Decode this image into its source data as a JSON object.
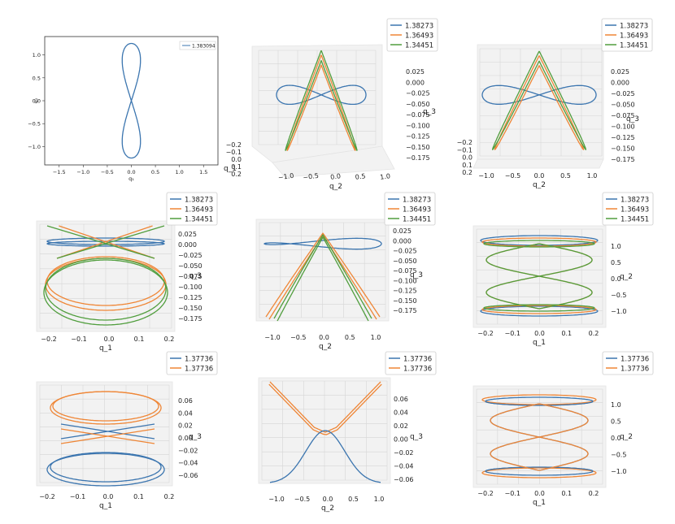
{
  "figure": {
    "colors": {
      "blue": "#3b75af",
      "orange": "#ef8636",
      "green": "#519e3e",
      "pane": "#f2f2f2",
      "grid": "#d6d6d6",
      "axis": "#333333"
    }
  },
  "chart_data": [
    {
      "id": "p1",
      "type": "line",
      "view": "2d",
      "legend_pos": "top-right",
      "series": [
        {
          "name": "1.383094",
          "color": "blue",
          "curve": "fig8v",
          "a": 0.2,
          "b": 1.25
        }
      ],
      "xlabel": "q₁",
      "ylabel": "q₂",
      "xticks": [
        "−1.5",
        "−1.0",
        "−0.5",
        "0.0",
        "0.5",
        "1.0",
        "1.5"
      ],
      "yticks": [
        "1.0",
        "0.5",
        "0.0",
        "−0.5",
        "−1.0"
      ],
      "xlim": [
        -1.8,
        1.8
      ],
      "ylim": [
        -1.4,
        1.4
      ]
    },
    {
      "id": "p2",
      "type": "line",
      "view": "3d-oblique",
      "legend_pos": "top-right",
      "series": [
        {
          "name": "1.38273",
          "color": "blue"
        },
        {
          "name": "1.36493",
          "color": "orange"
        },
        {
          "name": "1.34451",
          "color": "green"
        }
      ],
      "xlabel": "q_2",
      "ylabel": "q_1",
      "zlabel": "q_3",
      "xticks": [
        "−1.0",
        "−0.5",
        "0.0",
        "0.5",
        "1.0"
      ],
      "yticks": [
        "−0.2",
        "−0.1",
        "0.0",
        "0.1",
        "0.2"
      ],
      "zticks": [
        "0.025",
        "0.000",
        "−0.025",
        "−0.050",
        "−0.075",
        "−0.100",
        "−0.125",
        "−0.150",
        "−0.175"
      ]
    },
    {
      "id": "p3",
      "type": "line",
      "view": "3d-front",
      "legend_pos": "top-right",
      "series": [
        {
          "name": "1.38273",
          "color": "blue"
        },
        {
          "name": "1.36493",
          "color": "orange"
        },
        {
          "name": "1.34451",
          "color": "green"
        }
      ],
      "xlabel": "q_2",
      "ylabel": "q_1",
      "zlabel": "q_3",
      "xticks": [
        "−1.0",
        "−0.5",
        "0.0",
        "0.5",
        "1.0"
      ],
      "yticks": [
        "−0.2",
        "−0.1",
        "0.0",
        "0.1",
        "0.2"
      ],
      "zticks": [
        "0.025",
        "0.000",
        "−0.025",
        "−0.050",
        "−0.075",
        "−0.100",
        "−0.125",
        "−0.150",
        "−0.175"
      ]
    },
    {
      "id": "p4",
      "type": "line",
      "view": "3d-side-q1q3",
      "legend_pos": "top-right",
      "series": [
        {
          "name": "1.38273",
          "color": "blue"
        },
        {
          "name": "1.36493",
          "color": "orange"
        },
        {
          "name": "1.34451",
          "color": "green"
        }
      ],
      "xlabel": "q_1",
      "zlabel": "q_3",
      "xticks": [
        "−0.2",
        "−0.1",
        "0.0",
        "0.1",
        "0.2"
      ],
      "zticks": [
        "0.025",
        "0.000",
        "−0.025",
        "−0.050",
        "−0.075",
        "−0.100",
        "−0.125",
        "−0.150",
        "−0.175"
      ]
    },
    {
      "id": "p5",
      "type": "line",
      "view": "3d-side-q2q3",
      "legend_pos": "top-right",
      "series": [
        {
          "name": "1.38273",
          "color": "blue"
        },
        {
          "name": "1.36493",
          "color": "orange"
        },
        {
          "name": "1.34451",
          "color": "green"
        }
      ],
      "xlabel": "q_2",
      "zlabel": "q_3",
      "xticks": [
        "−1.0",
        "−0.5",
        "0.0",
        "0.5",
        "1.0"
      ],
      "zticks": [
        "0.025",
        "0.000",
        "−0.025",
        "−0.050",
        "−0.075",
        "−0.100",
        "−0.125",
        "−0.150",
        "−0.175"
      ]
    },
    {
      "id": "p6",
      "type": "line",
      "view": "3d-top-q1q2",
      "legend_pos": "top-right",
      "series": [
        {
          "name": "1.38273",
          "color": "blue"
        },
        {
          "name": "1.36493",
          "color": "orange"
        },
        {
          "name": "1.34451",
          "color": "green"
        }
      ],
      "xlabel": "q_1",
      "zlabel": "q_2",
      "xticks": [
        "−0.2",
        "−0.1",
        "0.0",
        "0.1",
        "0.2"
      ],
      "zticks": [
        "1.0",
        "0.5",
        "0.0",
        "−0.5",
        "−1.0"
      ]
    },
    {
      "id": "p7",
      "type": "line",
      "view": "3d-side-q1q3",
      "legend_pos": "top-right",
      "series": [
        {
          "name": "1.37736",
          "color": "blue"
        },
        {
          "name": "1.37736",
          "color": "orange"
        }
      ],
      "xlabel": "q_1",
      "zlabel": "q_3",
      "xticks": [
        "−0.2",
        "−0.1",
        "0.0",
        "0.1",
        "0.2"
      ],
      "zticks": [
        "0.06",
        "0.04",
        "0.02",
        "0.00",
        "−0.02",
        "−0.04",
        "−0.06"
      ]
    },
    {
      "id": "p8",
      "type": "line",
      "view": "3d-side-q2q3",
      "legend_pos": "top-right",
      "series": [
        {
          "name": "1.37736",
          "color": "blue"
        },
        {
          "name": "1.37736",
          "color": "orange"
        }
      ],
      "xlabel": "q_2",
      "zlabel": "q_3",
      "xticks": [
        "−1.0",
        "−0.5",
        "0.0",
        "0.5",
        "1.0"
      ],
      "zticks": [
        "0.06",
        "0.04",
        "0.02",
        "0.00",
        "−0.02",
        "−0.04",
        "−0.06"
      ]
    },
    {
      "id": "p9",
      "type": "line",
      "view": "3d-top-q1q2",
      "legend_pos": "top-right",
      "series": [
        {
          "name": "1.37736",
          "color": "blue"
        },
        {
          "name": "1.37736",
          "color": "orange"
        }
      ],
      "xlabel": "q_1",
      "zlabel": "q_2",
      "xticks": [
        "−0.2",
        "−0.1",
        "0.0",
        "0.1",
        "0.2"
      ],
      "zticks": [
        "1.0",
        "0.5",
        "0.0",
        "−0.5",
        "−1.0"
      ]
    }
  ]
}
